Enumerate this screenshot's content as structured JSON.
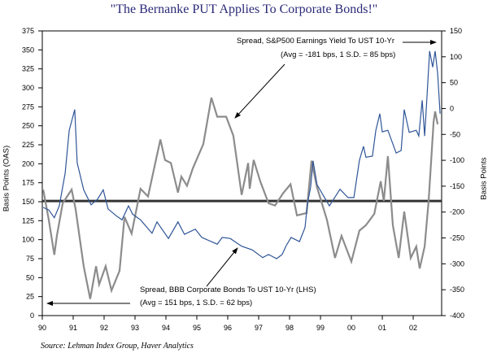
{
  "title": "\"The Bernanke PUT Applies To Corporate Bonds!\"",
  "source": "Source: Lehman Index Group, Haver Analytics",
  "chart_data": {
    "type": "line",
    "title": "\"The Bernanke PUT Applies To Corporate Bonds!\"",
    "xlabel": "",
    "ylabel_left": "Basis Points (OAS)",
    "ylabel_right": "Basis Points",
    "x_tick_labels": [
      "90",
      "91",
      "92",
      "93",
      "94",
      "95",
      "96",
      "97",
      "98",
      "99",
      "00",
      "01",
      "02"
    ],
    "xlim": [
      1990,
      2002.92
    ],
    "ylim_left": [
      0,
      375
    ],
    "yticks_left": [
      0,
      25,
      50,
      75,
      100,
      125,
      150,
      175,
      200,
      225,
      250,
      275,
      300,
      325,
      350,
      375
    ],
    "ylim_right": [
      -400,
      150
    ],
    "yticks_right": [
      -400,
      -350,
      -300,
      -250,
      -200,
      -150,
      -100,
      -50,
      0,
      50,
      100,
      150
    ],
    "grid": false,
    "reference_line_left": 151,
    "annotations": [
      {
        "line1": "Spread, S&P500 Earnings Yield To UST 10-Yr",
        "line2": "(Avg = -181 bps, 1 S.D. = 85 bps)"
      },
      {
        "line1": "Spread, BBB Corporate Bonds To UST 10-Yr (LHS)",
        "line2": "(Avg = 151 bps, 1 S.D. = 62 bps)"
      }
    ],
    "series": [
      {
        "name": "Spread, BBB Corporate Bonds To UST 10-Yr (LHS)",
        "axis": "left",
        "color": "#8c8c8c",
        "x": [
          1990.03,
          1990.21,
          1990.39,
          1990.47,
          1990.66,
          1990.82,
          1990.95,
          1991.08,
          1991.34,
          1991.55,
          1991.74,
          1991.84,
          1992.05,
          1992.24,
          1992.5,
          1992.66,
          1992.89,
          1993.18,
          1993.42,
          1993.82,
          1993.97,
          1994.16,
          1994.39,
          1994.5,
          1994.68,
          1994.87,
          1995.21,
          1995.47,
          1995.66,
          1995.95,
          1996.18,
          1996.45,
          1996.66,
          1996.71,
          1996.84,
          1997.05,
          1997.32,
          1997.53,
          1997.79,
          1998.03,
          1998.24,
          1998.55,
          1998.71,
          1998.89,
          1999.21,
          1999.47,
          1999.68,
          2000.0,
          2000.26,
          2000.47,
          2000.74,
          2000.95,
          2001.05,
          2001.18,
          2001.34,
          2001.53,
          2001.71,
          2001.92,
          2002.1,
          2002.21,
          2002.37,
          2002.5,
          2002.66,
          2002.71,
          2002.79
        ],
        "y": [
          166,
          126,
          80,
          105,
          148,
          158,
          166,
          140,
          65,
          22,
          65,
          41,
          65,
          33,
          59,
          130,
          108,
          167,
          157,
          232,
          205,
          201,
          162,
          183,
          171,
          194,
          226,
          287,
          262,
          262,
          237,
          159,
          201,
          167,
          205,
          177,
          148,
          145,
          161,
          173,
          132,
          135,
          204,
          169,
          126,
          76,
          105,
          71,
          112,
          119,
          134,
          177,
          151,
          210,
          119,
          76,
          137,
          76,
          91,
          62,
          91,
          151,
          255,
          269,
          252
        ]
      },
      {
        "name": "Spread, S&P500 Earnings Yield To UST 10-Yr",
        "axis": "right",
        "color": "#2f5597",
        "x": [
          1990.03,
          1990.21,
          1990.39,
          1990.55,
          1990.74,
          1990.87,
          1991.05,
          1991.13,
          1991.34,
          1991.58,
          1991.79,
          1991.97,
          1992.13,
          1992.39,
          1992.58,
          1992.79,
          1992.92,
          1993.18,
          1993.55,
          1993.71,
          1994.08,
          1994.39,
          1994.6,
          1994.95,
          1995.16,
          1995.66,
          1995.82,
          1996.08,
          1996.45,
          1996.79,
          1997.13,
          1997.32,
          1997.58,
          1997.76,
          1997.89,
          1998.05,
          1998.32,
          1998.5,
          1998.58,
          1998.68,
          1998.76,
          1998.89,
          1999.08,
          1999.29,
          1999.63,
          1999.89,
          2000.08,
          2000.26,
          2000.39,
          2000.47,
          2000.68,
          2000.79,
          2000.92,
          2001.0,
          2001.18,
          2001.45,
          2001.61,
          2001.71,
          2001.87,
          2002.1,
          2002.18,
          2002.29,
          2002.37,
          2002.45,
          2002.53,
          2002.63,
          2002.71,
          2002.79,
          2002.87
        ],
        "y": [
          -191,
          -196,
          -211,
          -188,
          -125,
          -42,
          -2,
          -105,
          -157,
          -186,
          -175,
          -157,
          -194,
          -207,
          -215,
          -188,
          -204,
          -215,
          -241,
          -219,
          -251,
          -219,
          -243,
          -233,
          -249,
          -262,
          -249,
          -251,
          -266,
          -273,
          -288,
          -282,
          -290,
          -282,
          -265,
          -249,
          -257,
          -230,
          -183,
          -152,
          -101,
          -147,
          -167,
          -188,
          -156,
          -172,
          -172,
          -100,
          -73,
          -94,
          -92,
          -42,
          -10,
          -45,
          -42,
          -86,
          -81,
          -2,
          -46,
          -42,
          -53,
          16,
          -53,
          26,
          111,
          80,
          111,
          68,
          -10
        ]
      }
    ]
  }
}
